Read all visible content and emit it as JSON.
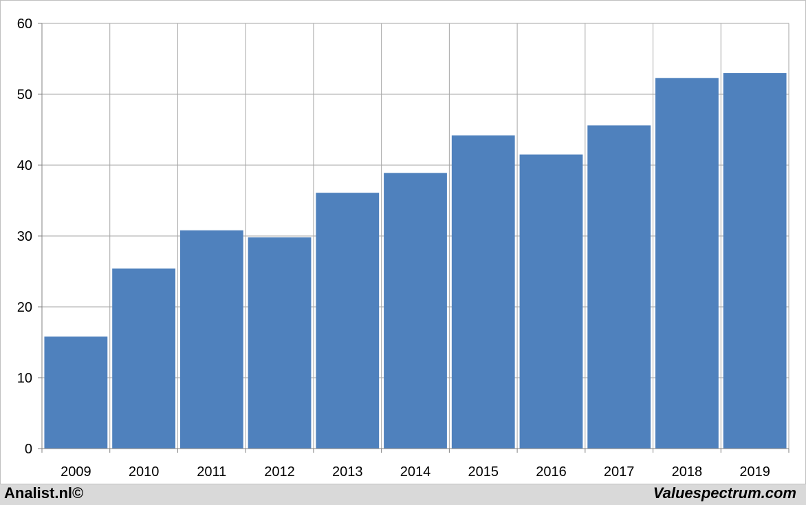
{
  "chart_data": {
    "type": "bar",
    "categories": [
      "2009",
      "2010",
      "2011",
      "2012",
      "2013",
      "2014",
      "2015",
      "2016",
      "2017",
      "2018",
      "2019"
    ],
    "values": [
      15.8,
      25.4,
      30.8,
      29.8,
      36.1,
      38.9,
      44.2,
      41.5,
      45.6,
      52.3,
      53.0
    ],
    "yticks": [
      0,
      10,
      20,
      30,
      40,
      50,
      60
    ],
    "ylim": [
      0,
      60
    ],
    "grid": true,
    "bar_color": "#4f81bd",
    "grid_color": "#a6a6a6"
  },
  "footer": {
    "left": "Analist.nl©",
    "right": "Valuespectrum.com"
  }
}
